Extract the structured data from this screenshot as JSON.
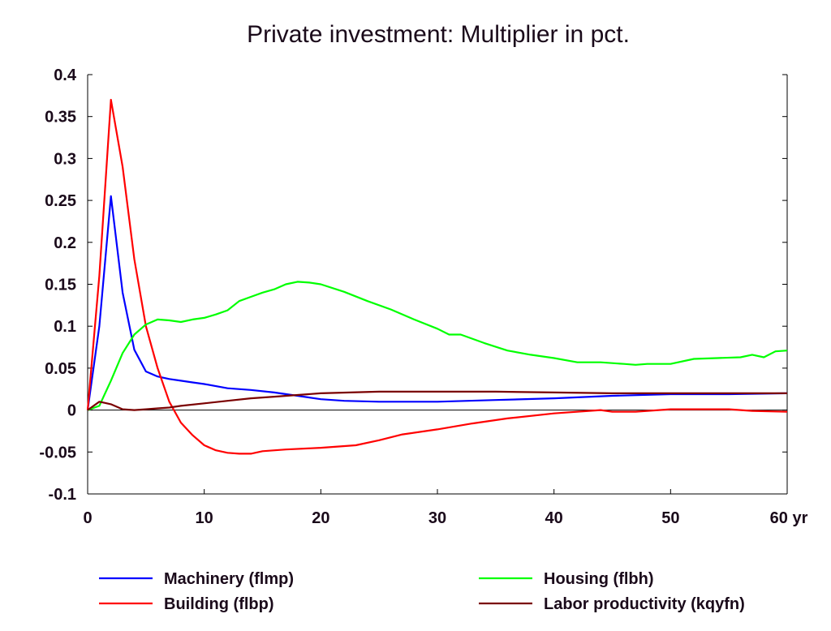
{
  "chart_data": {
    "type": "line",
    "title": "Private investment: Multiplier in pct.",
    "x_unit": "yr",
    "xlim": [
      0,
      60
    ],
    "ylim": [
      -0.1,
      0.4
    ],
    "x_ticks": [
      0,
      10,
      20,
      30,
      40,
      50,
      60
    ],
    "x_tick_labels": [
      "0",
      "10",
      "20",
      "30",
      "40",
      "50",
      "60 yr"
    ],
    "y_ticks": [
      -0.1,
      -0.05,
      0,
      0.05,
      0.1,
      0.15,
      0.2,
      0.25,
      0.3,
      0.35,
      0.4
    ],
    "y_tick_labels": [
      "-0.1",
      "-0.05",
      "0",
      "0.05",
      "0.1",
      "0.15",
      "0.2",
      "0.25",
      "0.3",
      "0.35",
      "0.4"
    ],
    "grid": false,
    "zero_line": true,
    "legend_position": "bottom",
    "series": [
      {
        "name": "Machinery (flmp)",
        "color": "#0000ff",
        "x": [
          0,
          1,
          2,
          3,
          4,
          5,
          6,
          7,
          8,
          9,
          10,
          12,
          14,
          16,
          18,
          20,
          22,
          25,
          30,
          35,
          40,
          45,
          50,
          55,
          60
        ],
        "y": [
          0,
          0.1,
          0.255,
          0.14,
          0.072,
          0.046,
          0.04,
          0.037,
          0.035,
          0.033,
          0.031,
          0.026,
          0.024,
          0.021,
          0.017,
          0.013,
          0.011,
          0.01,
          0.01,
          0.012,
          0.014,
          0.017,
          0.019,
          0.019,
          0.02
        ]
      },
      {
        "name": "Building (flbp)",
        "color": "#ff0000",
        "x": [
          0,
          1,
          2,
          3,
          4,
          5,
          6,
          7,
          8,
          9,
          10,
          11,
          12,
          13,
          14,
          15,
          17,
          20,
          23,
          25,
          27,
          30,
          33,
          36,
          40,
          44,
          45,
          47,
          50,
          55,
          57,
          60
        ],
        "y": [
          0,
          0.16,
          0.37,
          0.29,
          0.18,
          0.1,
          0.05,
          0.01,
          -0.015,
          -0.03,
          -0.042,
          -0.048,
          -0.051,
          -0.052,
          -0.052,
          -0.049,
          -0.047,
          -0.045,
          -0.042,
          -0.036,
          -0.029,
          -0.023,
          -0.016,
          -0.01,
          -0.004,
          0.0,
          -0.002,
          -0.002,
          0.001,
          0.001,
          -0.001,
          -0.002
        ]
      },
      {
        "name": "Housing (flbh)",
        "color": "#00ff00",
        "x": [
          0,
          1,
          2,
          3,
          4,
          5,
          6,
          7,
          8,
          9,
          10,
          11,
          12,
          13,
          14,
          15,
          16,
          17,
          18,
          19,
          20,
          22,
          24,
          26,
          28,
          30,
          31,
          32,
          34,
          36,
          38,
          40,
          42,
          44,
          46,
          47,
          48,
          50,
          52,
          54,
          56,
          57,
          58,
          59,
          60
        ],
        "y": [
          0,
          0.005,
          0.035,
          0.068,
          0.09,
          0.102,
          0.108,
          0.107,
          0.105,
          0.108,
          0.11,
          0.114,
          0.119,
          0.13,
          0.135,
          0.14,
          0.144,
          0.15,
          0.153,
          0.152,
          0.15,
          0.141,
          0.13,
          0.12,
          0.108,
          0.097,
          0.09,
          0.09,
          0.08,
          0.071,
          0.066,
          0.062,
          0.057,
          0.057,
          0.055,
          0.054,
          0.055,
          0.055,
          0.061,
          0.062,
          0.063,
          0.066,
          0.063,
          0.07,
          0.071
        ]
      },
      {
        "name": "Labor productivity (kqyfn)",
        "color": "#7a0000",
        "x": [
          0,
          1,
          2,
          3,
          4,
          5,
          6,
          7,
          8,
          10,
          12,
          14,
          16,
          18,
          20,
          25,
          30,
          35,
          40,
          45,
          50,
          55,
          60
        ],
        "y": [
          0,
          0.01,
          0.007,
          0.001,
          0.0,
          0.001,
          0.002,
          0.003,
          0.005,
          0.008,
          0.011,
          0.014,
          0.016,
          0.018,
          0.02,
          0.022,
          0.022,
          0.022,
          0.021,
          0.02,
          0.02,
          0.02,
          0.02
        ]
      }
    ]
  }
}
